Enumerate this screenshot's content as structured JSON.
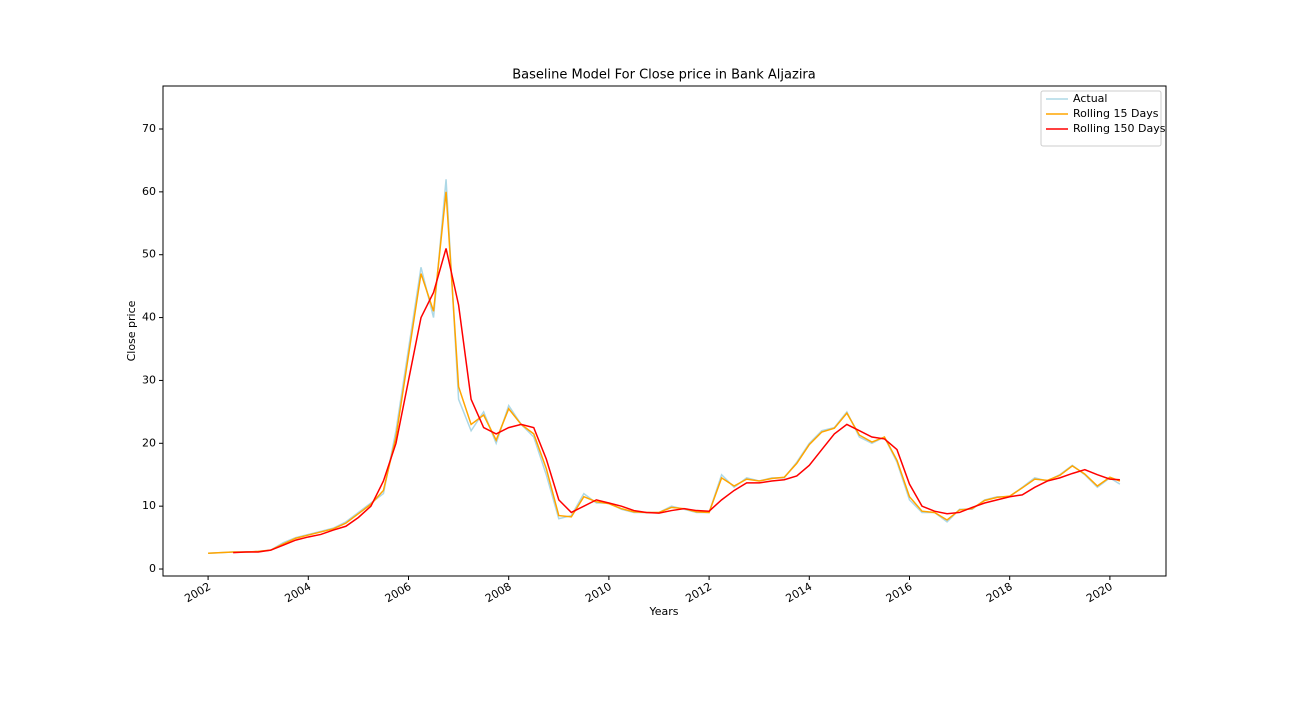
{
  "chart_data": {
    "type": "line",
    "title": "Baseline Model For Close price in Bank Aljazira",
    "xlabel": "Years",
    "ylabel": "Close price",
    "x": [
      2002.0,
      2002.25,
      2002.5,
      2002.75,
      2003.0,
      2003.25,
      2003.5,
      2003.75,
      2004.0,
      2004.25,
      2004.5,
      2004.75,
      2005.0,
      2005.25,
      2005.5,
      2005.75,
      2006.0,
      2006.25,
      2006.5,
      2006.75,
      2007.0,
      2007.25,
      2007.5,
      2007.75,
      2008.0,
      2008.25,
      2008.5,
      2008.75,
      2009.0,
      2009.25,
      2009.5,
      2009.75,
      2010.0,
      2010.25,
      2010.5,
      2010.75,
      2011.0,
      2011.25,
      2011.5,
      2011.75,
      2012.0,
      2012.25,
      2012.5,
      2012.75,
      2013.0,
      2013.25,
      2013.5,
      2013.75,
      2014.0,
      2014.25,
      2014.5,
      2014.75,
      2015.0,
      2015.25,
      2015.5,
      2015.75,
      2016.0,
      2016.25,
      2016.5,
      2016.75,
      2017.0,
      2017.25,
      2017.5,
      2017.75,
      2018.0,
      2018.25,
      2018.5,
      2018.75,
      2019.0,
      2019.25,
      2019.5,
      2019.75,
      2020.0,
      2020.2
    ],
    "series": [
      {
        "name": "Actual",
        "color": "#add8e6",
        "values": [
          2.5,
          2.6,
          2.7,
          2.7,
          2.8,
          3.0,
          4.2,
          5.0,
          5.5,
          6.0,
          6.5,
          7.5,
          9.0,
          10.5,
          12.0,
          22.0,
          35,
          48,
          40,
          62,
          27,
          22,
          25,
          20,
          26,
          23,
          21,
          15,
          8,
          8.5,
          12,
          10.5,
          10.5,
          9.5,
          9,
          9,
          9,
          10,
          9.5,
          9,
          9,
          15,
          13,
          14.5,
          14,
          14.5,
          14.5,
          17,
          20,
          22,
          22.5,
          25,
          21,
          20,
          21,
          17,
          11,
          9,
          9,
          7.5,
          9.5,
          9.5,
          11,
          11.5,
          11.5,
          13,
          14.5,
          14,
          15,
          16.5,
          15,
          13,
          14.5,
          13.5
        ]
      },
      {
        "name": "Rolling 15 Days",
        "color": "#ffa500",
        "values": [
          2.5,
          2.6,
          2.7,
          2.7,
          2.8,
          3.0,
          4.0,
          4.9,
          5.4,
          5.9,
          6.4,
          7.3,
          8.8,
          10.3,
          12.5,
          21,
          34,
          47,
          41,
          60,
          29,
          23,
          24.5,
          20.5,
          25.5,
          23,
          21.5,
          16,
          8.5,
          8.3,
          11.5,
          10.7,
          10.4,
          9.6,
          9.1,
          9,
          9,
          9.8,
          9.6,
          9.1,
          9,
          14.5,
          13.2,
          14.3,
          14,
          14.4,
          14.6,
          16.8,
          19.8,
          21.8,
          22.4,
          24.8,
          21.3,
          20.2,
          21,
          17.3,
          11.5,
          9.2,
          9,
          7.8,
          9.4,
          9.6,
          10.9,
          11.4,
          11.6,
          12.9,
          14.3,
          14.1,
          14.9,
          16.4,
          15.1,
          13.2,
          14.6,
          14
        ]
      },
      {
        "name": "Rolling 150 Days",
        "color": "#ff0000",
        "values": [
          null,
          null,
          2.6,
          2.7,
          2.7,
          3.0,
          3.8,
          4.6,
          5.1,
          5.5,
          6.2,
          6.8,
          8.2,
          10,
          14,
          20,
          30,
          40,
          44,
          51,
          42,
          27,
          22.5,
          21.5,
          22.5,
          23,
          22.5,
          17.5,
          11,
          9,
          10,
          11,
          10.5,
          10,
          9.3,
          9,
          8.9,
          9.3,
          9.6,
          9.3,
          9.2,
          11,
          12.5,
          13.7,
          13.7,
          14,
          14.2,
          14.8,
          16.5,
          19,
          21.5,
          23,
          22,
          21,
          20.7,
          19,
          13.5,
          10,
          9.2,
          8.8,
          9,
          9.8,
          10.5,
          11,
          11.5,
          11.8,
          13,
          14,
          14.5,
          15.2,
          15.8,
          15,
          14.3,
          14.2
        ]
      }
    ],
    "xlim": [
      2001.1,
      2021.12
    ],
    "xticks": [
      2002,
      2004,
      2006,
      2008,
      2010,
      2012,
      2014,
      2016,
      2018,
      2020
    ],
    "ylim": [
      -1.11,
      76.84
    ],
    "yticks": [
      0,
      10,
      20,
      30,
      40,
      50,
      60,
      70
    ],
    "legend": "upper right"
  }
}
